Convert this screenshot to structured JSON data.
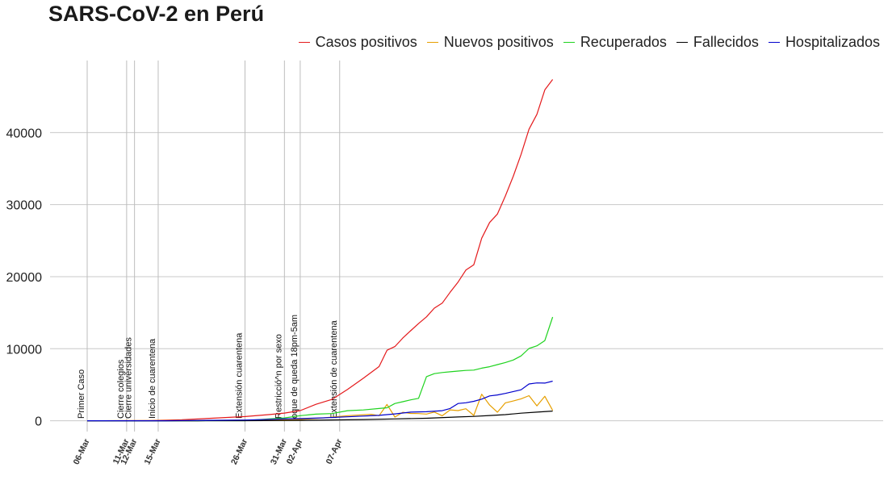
{
  "chart_data": {
    "type": "line",
    "title": "SARS-CoV-2 en Perú",
    "xlabel": "",
    "ylabel": "",
    "x_start": "06-Mar",
    "x_end": "28-Apr",
    "ylim": [
      -1500,
      50000
    ],
    "y_ticks": [
      0,
      10000,
      20000,
      30000,
      40000
    ],
    "y_tick_labels": [
      "0",
      "10000",
      "20000",
      "30000",
      "40000"
    ],
    "x_tick_labels": [
      "06-Mar",
      "11-Mar",
      "12-Mar",
      "15-Mar",
      "26-Mar",
      "31-Mar",
      "02-Apr",
      "07-Apr"
    ],
    "grid": true,
    "legend_position": "top-right",
    "annotations": [
      {
        "date": "06-Mar",
        "label": "Primer Caso"
      },
      {
        "date": "11-Mar",
        "label": "Cierre colegios"
      },
      {
        "date": "12-Mar",
        "label": "Cierre universidades"
      },
      {
        "date": "15-Mar",
        "label": "Inicio de cuarentena"
      },
      {
        "date": "26-Mar",
        "label": "Extensión cuarentena"
      },
      {
        "date": "31-Mar",
        "label": "Restricció^n por sexo"
      },
      {
        "date": "02-Apr",
        "label": "oque de queda 18pm-5am"
      },
      {
        "date": "07-Apr",
        "label": "Extensión de cuarentena"
      }
    ],
    "series": [
      {
        "name": "Casos positivos",
        "color": "#e41a1c",
        "points": [
          [
            "06-Mar",
            1
          ],
          [
            "10-Mar",
            11
          ],
          [
            "14-Mar",
            38
          ],
          [
            "18-Mar",
            145
          ],
          [
            "22-Mar",
            363
          ],
          [
            "26-Mar",
            580
          ],
          [
            "29-Mar",
            852
          ],
          [
            "31-Mar",
            1065
          ],
          [
            "02-Apr",
            1414
          ],
          [
            "04-Apr",
            2281
          ],
          [
            "06-Apr",
            2954
          ],
          [
            "08-Apr",
            4342
          ],
          [
            "10-Apr",
            5897
          ],
          [
            "12-Apr",
            7519
          ],
          [
            "13-Apr",
            9784
          ],
          [
            "14-Apr",
            10303
          ],
          [
            "15-Apr",
            11475
          ],
          [
            "16-Apr",
            12491
          ],
          [
            "17-Apr",
            13489
          ],
          [
            "18-Apr",
            14420
          ],
          [
            "19-Apr",
            15628
          ],
          [
            "20-Apr",
            16325
          ],
          [
            "21-Apr",
            17837
          ],
          [
            "22-Apr",
            19250
          ],
          [
            "23-Apr",
            20914
          ],
          [
            "24-Apr",
            21648
          ],
          [
            "25-Apr",
            25331
          ],
          [
            "26-Apr",
            27517
          ],
          [
            "27-Apr",
            28699
          ],
          [
            "28-Apr",
            31190
          ],
          [
            "29-Apr",
            33931
          ],
          [
            "30-Apr",
            36976
          ],
          [
            "01-May",
            40459
          ],
          [
            "02-May",
            42534
          ],
          [
            "03-May",
            45928
          ],
          [
            "04-May",
            47372
          ]
        ]
      },
      {
        "name": "Nuevos positivos",
        "color": "#e69f00",
        "points": [
          [
            "06-Mar",
            1
          ],
          [
            "14-Mar",
            10
          ],
          [
            "18-Mar",
            28
          ],
          [
            "22-Mar",
            45
          ],
          [
            "26-Mar",
            65
          ],
          [
            "30-Mar",
            100
          ],
          [
            "02-Apr",
            180
          ],
          [
            "05-Apr",
            400
          ],
          [
            "08-Apr",
            700
          ],
          [
            "11-Apr",
            900
          ],
          [
            "12-Apr",
            700
          ],
          [
            "13-Apr",
            2265
          ],
          [
            "14-Apr",
            519
          ],
          [
            "15-Apr",
            1172
          ],
          [
            "16-Apr",
            1016
          ],
          [
            "17-Apr",
            998
          ],
          [
            "18-Apr",
            931
          ],
          [
            "19-Apr",
            1208
          ],
          [
            "20-Apr",
            697
          ],
          [
            "21-Apr",
            1512
          ],
          [
            "22-Apr",
            1413
          ],
          [
            "23-Apr",
            1664
          ],
          [
            "24-Apr",
            734
          ],
          [
            "25-Apr",
            3683
          ],
          [
            "26-Apr",
            2186
          ],
          [
            "27-Apr",
            1182
          ],
          [
            "28-Apr",
            2491
          ],
          [
            "29-Apr",
            2741
          ],
          [
            "30-Apr",
            3045
          ],
          [
            "01-May",
            3483
          ],
          [
            "02-May",
            2075
          ],
          [
            "03-May",
            3394
          ],
          [
            "04-May",
            1444
          ]
        ]
      },
      {
        "name": "Recuperados",
        "color": "#1fd31f",
        "points": [
          [
            "06-Mar",
            0
          ],
          [
            "20-Mar",
            5
          ],
          [
            "26-Mar",
            16
          ],
          [
            "29-Mar",
            250
          ],
          [
            "31-Mar",
            394
          ],
          [
            "02-Apr",
            700
          ],
          [
            "04-Apr",
            914
          ],
          [
            "06-Apr",
            1000
          ],
          [
            "08-Apr",
            1400
          ],
          [
            "10-Apr",
            1500
          ],
          [
            "12-Apr",
            1700
          ],
          [
            "13-Apr",
            1800
          ],
          [
            "14-Apr",
            2400
          ],
          [
            "15-Apr",
            2642
          ],
          [
            "16-Apr",
            2900
          ],
          [
            "17-Apr",
            3108
          ],
          [
            "18-Apr",
            6120
          ],
          [
            "19-Apr",
            6541
          ],
          [
            "20-Apr",
            6700
          ],
          [
            "21-Apr",
            6800
          ],
          [
            "22-Apr",
            6900
          ],
          [
            "23-Apr",
            6982
          ],
          [
            "24-Apr",
            7027
          ],
          [
            "25-Apr",
            7300
          ],
          [
            "26-Apr",
            7496
          ],
          [
            "27-Apr",
            7797
          ],
          [
            "28-Apr",
            8088
          ],
          [
            "29-Apr",
            8425
          ],
          [
            "30-Apr",
            9000
          ],
          [
            "01-May",
            10037
          ],
          [
            "02-May",
            10405
          ],
          [
            "03-May",
            11129
          ],
          [
            "04-May",
            14400
          ]
        ]
      },
      {
        "name": "Fallecidos",
        "color": "#000000",
        "points": [
          [
            "06-Mar",
            0
          ],
          [
            "20-Mar",
            5
          ],
          [
            "26-Mar",
            10
          ],
          [
            "31-Mar",
            30
          ],
          [
            "02-Apr",
            61
          ],
          [
            "06-Apr",
            107
          ],
          [
            "10-Apr",
            169
          ],
          [
            "14-Apr",
            254
          ],
          [
            "18-Apr",
            348
          ],
          [
            "22-Apr",
            530
          ],
          [
            "24-Apr",
            600
          ],
          [
            "26-Apr",
            728
          ],
          [
            "28-Apr",
            854
          ],
          [
            "30-Apr",
            1051
          ],
          [
            "02-May",
            1200
          ],
          [
            "04-May",
            1344
          ]
        ]
      },
      {
        "name": "Hospitalizados",
        "color": "#0000cc",
        "points": [
          [
            "06-Mar",
            0
          ],
          [
            "16-Mar",
            5
          ],
          [
            "20-Mar",
            40
          ],
          [
            "26-Mar",
            100
          ],
          [
            "31-Mar",
            250
          ],
          [
            "02-Apr",
            300
          ],
          [
            "05-Apr",
            400
          ],
          [
            "08-Apr",
            550
          ],
          [
            "10-Apr",
            650
          ],
          [
            "12-Apr",
            750
          ],
          [
            "14-Apr",
            950
          ],
          [
            "16-Apr",
            1200
          ],
          [
            "18-Apr",
            1250
          ],
          [
            "20-Apr",
            1400
          ],
          [
            "21-Apr",
            1700
          ],
          [
            "22-Apr",
            2400
          ],
          [
            "23-Apr",
            2500
          ],
          [
            "24-Apr",
            2700
          ],
          [
            "25-Apr",
            3000
          ],
          [
            "26-Apr",
            3450
          ],
          [
            "27-Apr",
            3580
          ],
          [
            "28-Apr",
            3800
          ],
          [
            "29-Apr",
            4050
          ],
          [
            "30-Apr",
            4300
          ],
          [
            "01-May",
            5100
          ],
          [
            "02-May",
            5250
          ],
          [
            "03-May",
            5230
          ],
          [
            "04-May",
            5500
          ]
        ]
      }
    ]
  }
}
